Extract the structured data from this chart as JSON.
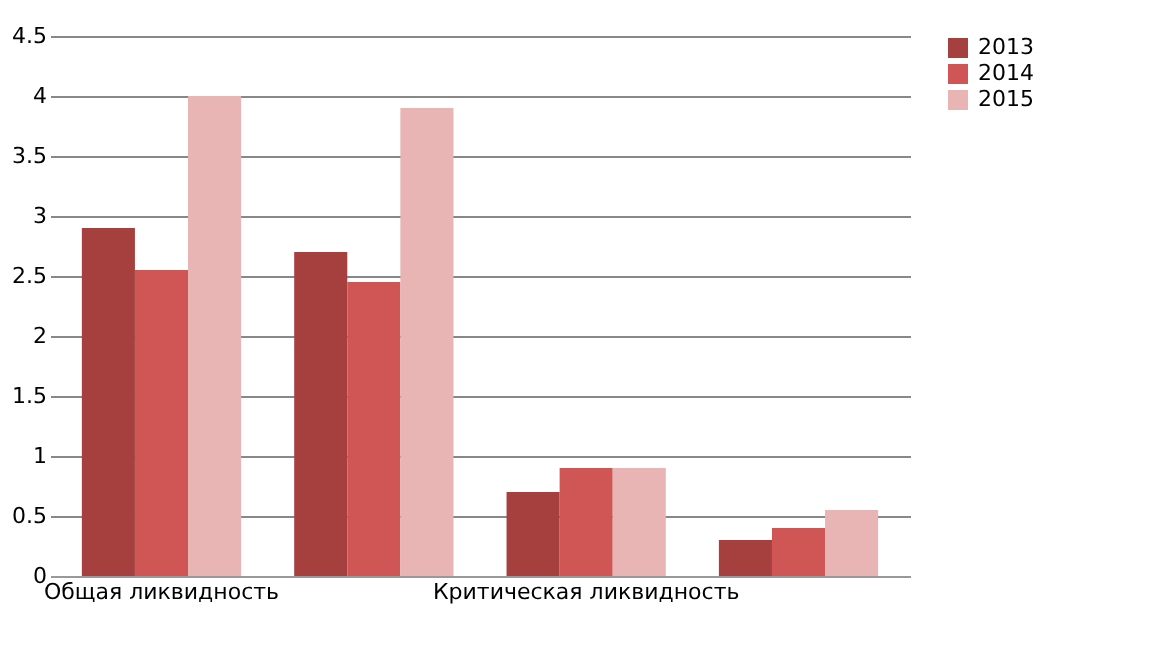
{
  "chart_data": {
    "type": "bar",
    "categories": [
      "Общая ликвидность",
      null,
      "Критическая ликвидность",
      null
    ],
    "series": [
      {
        "name": "2013",
        "color": "#a5403e",
        "values": [
          2.9,
          2.7,
          0.7,
          0.3
        ]
      },
      {
        "name": "2014",
        "color": "#d05555",
        "values": [
          2.55,
          2.45,
          0.9,
          0.4
        ]
      },
      {
        "name": "2015",
        "color": "#e8b4b4",
        "values": [
          4.0,
          3.9,
          0.9,
          0.55
        ]
      }
    ],
    "ylim": [
      0,
      4.5
    ],
    "yticks": [
      0,
      0.5,
      1,
      1.5,
      2,
      2.5,
      3,
      3.5,
      4,
      4.5
    ],
    "grid": "y",
    "legend": "right"
  }
}
